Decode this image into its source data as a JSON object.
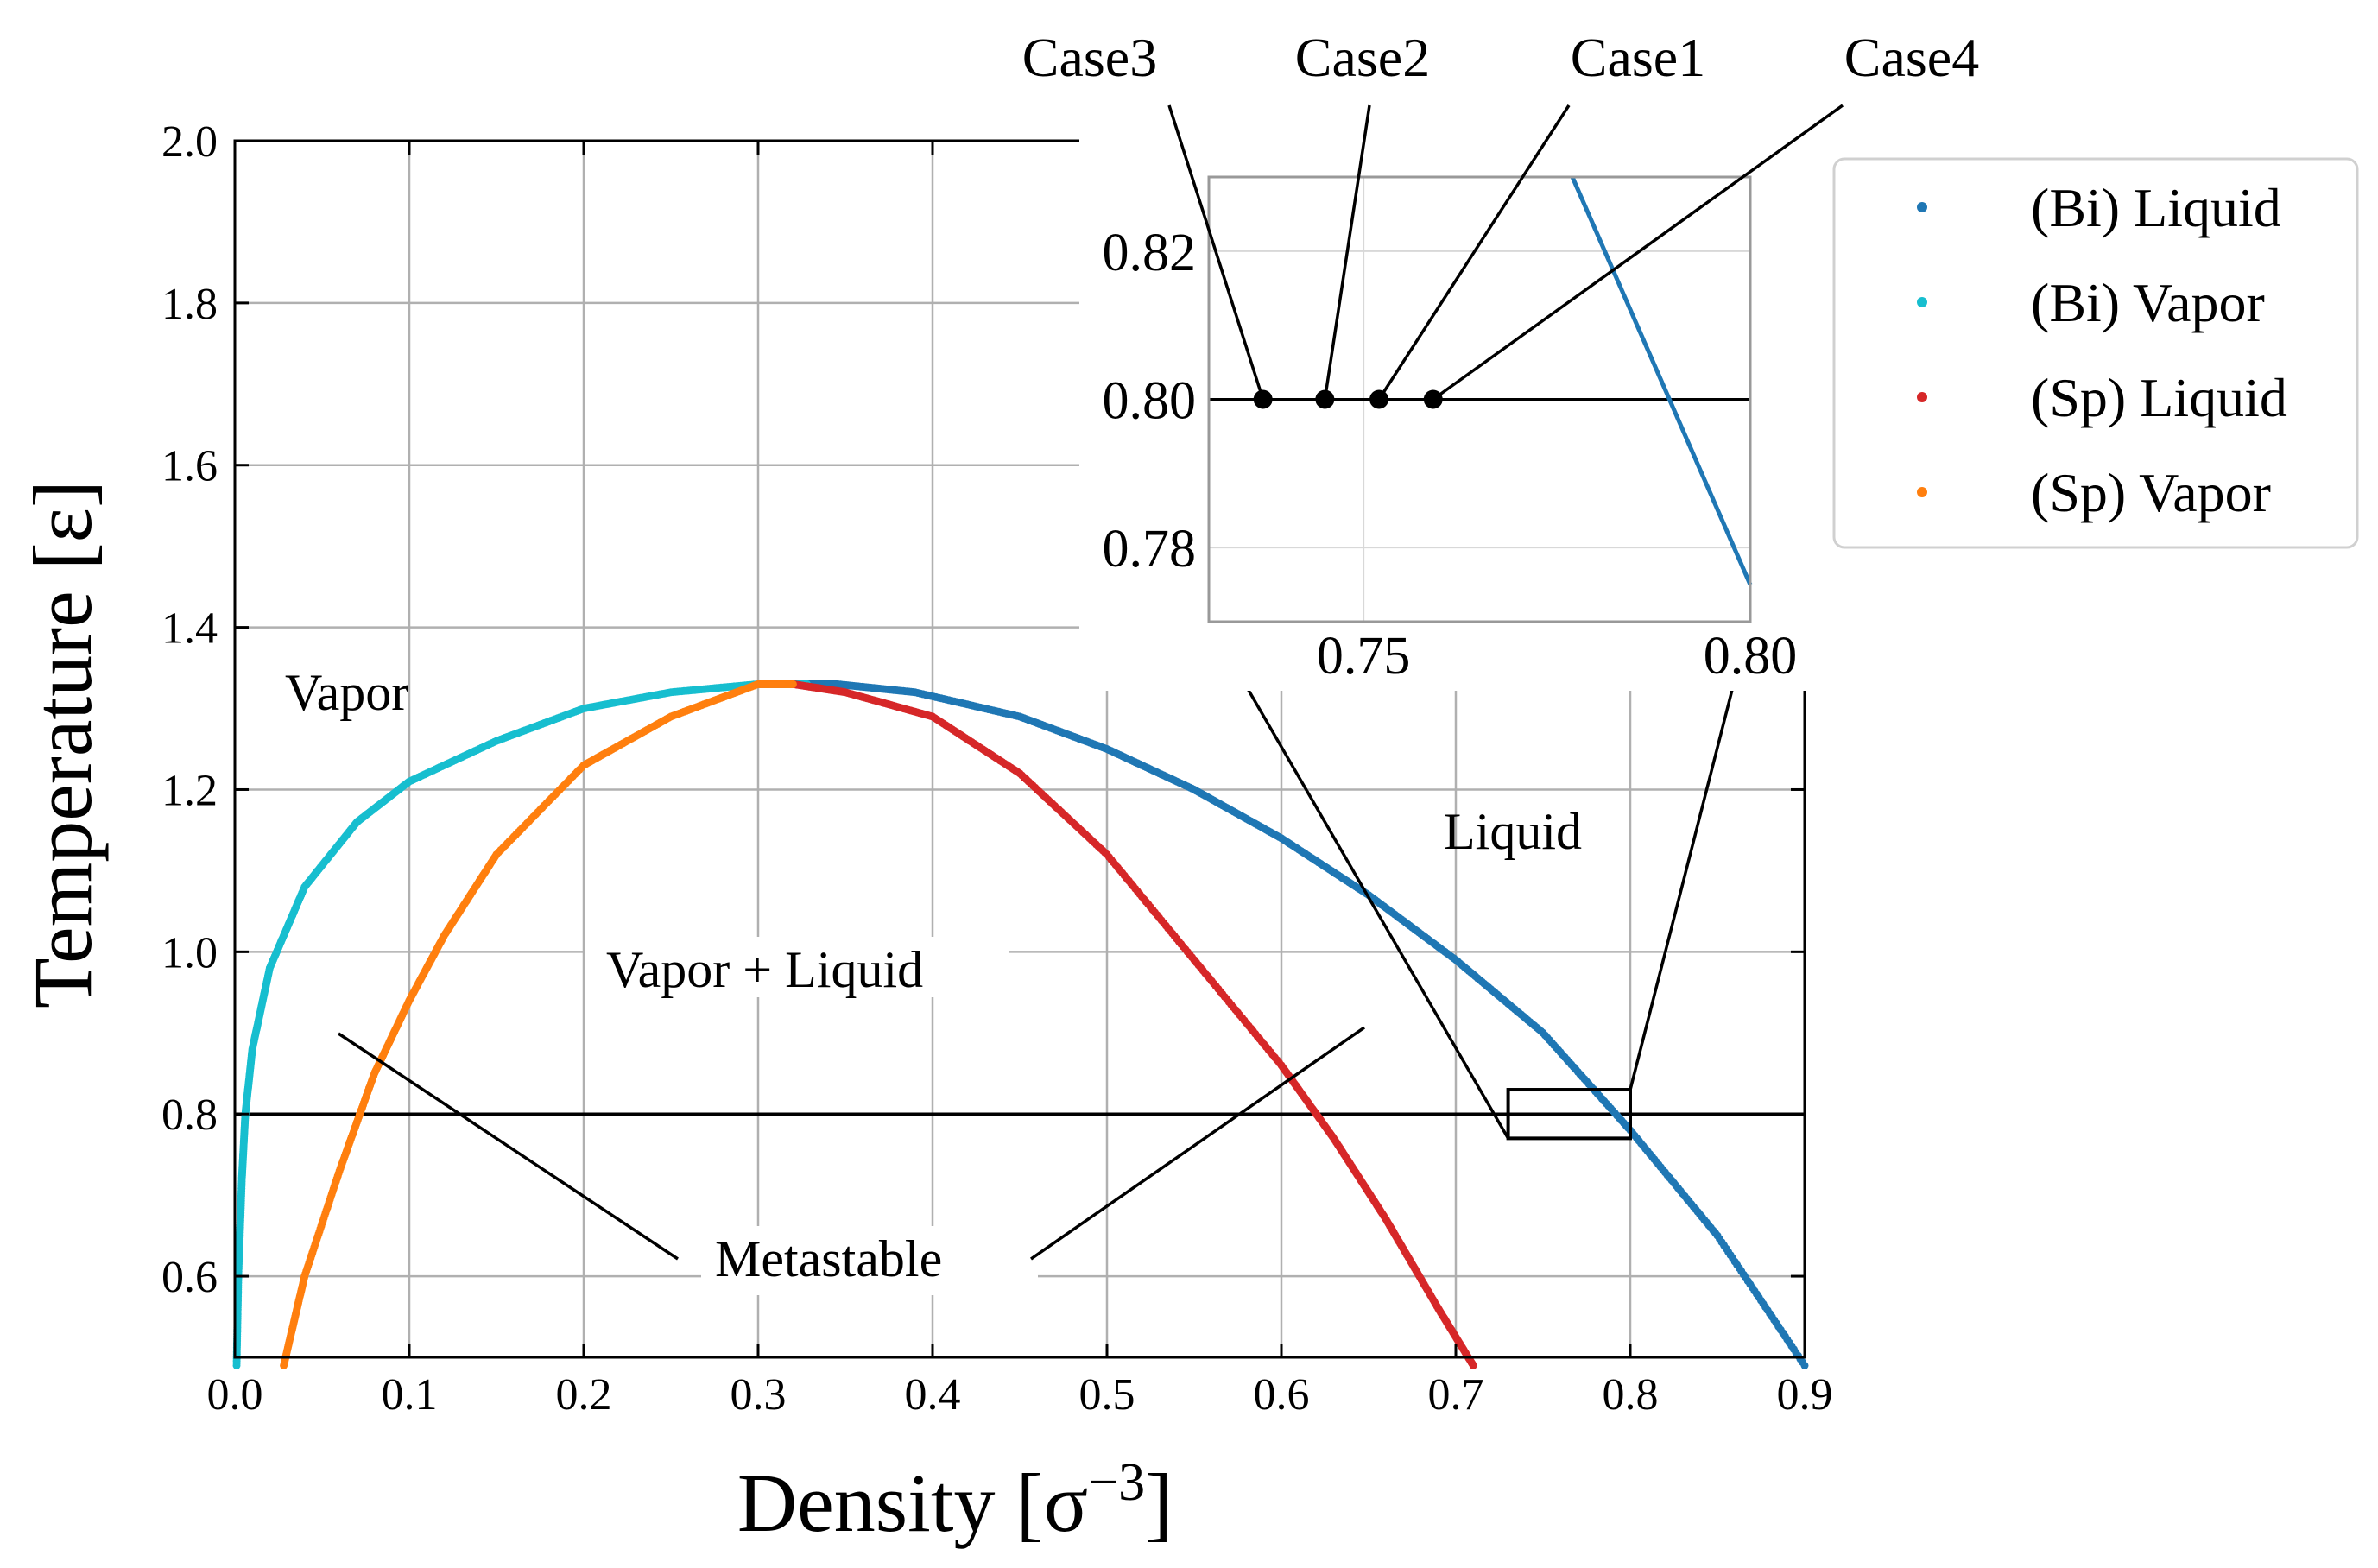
{
  "chart_data": [
    {
      "id": "main",
      "type": "scatter",
      "xlabel": "Density [σ⁻³]",
      "xlabel_parts": {
        "base": "Density [σ",
        "sup": "−3",
        "end": "]"
      },
      "ylabel": "Temperature [ε]",
      "xlim": [
        0.0,
        0.9
      ],
      "ylim": [
        0.5,
        2.0
      ],
      "xticks": [
        0.0,
        0.1,
        0.2,
        0.3,
        0.4,
        0.5,
        0.6,
        0.7,
        0.8,
        0.9
      ],
      "xtick_labels": [
        "0.0",
        "0.1",
        "0.2",
        "0.3",
        "0.4",
        "0.5",
        "0.6",
        "0.7",
        "0.8",
        "0.9"
      ],
      "yticks": [
        0.6,
        0.8,
        1.0,
        1.2,
        1.4,
        1.6,
        1.8,
        2.0
      ],
      "ytick_labels": [
        "0.6",
        "0.8",
        "1.0",
        "1.2",
        "1.4",
        "1.6",
        "1.8",
        "2.0"
      ],
      "grid": true,
      "hline": 0.8,
      "series": [
        {
          "name": "(Bi) Liquid",
          "color": "#1f77b4",
          "x": [
            0.328,
            0.345,
            0.39,
            0.45,
            0.5,
            0.55,
            0.6,
            0.65,
            0.7,
            0.75,
            0.8,
            0.85,
            0.9
          ],
          "y": [
            1.33,
            1.33,
            1.32,
            1.29,
            1.25,
            1.2,
            1.14,
            1.07,
            0.99,
            0.9,
            0.78,
            0.65,
            0.49
          ]
        },
        {
          "name": "(Bi) Vapor",
          "color": "#17becf",
          "x": [
            0.001,
            0.002,
            0.004,
            0.006,
            0.01,
            0.02,
            0.04,
            0.07,
            0.1,
            0.15,
            0.2,
            0.25,
            0.3,
            0.328
          ],
          "y": [
            0.49,
            0.6,
            0.72,
            0.8,
            0.88,
            0.98,
            1.08,
            1.16,
            1.21,
            1.26,
            1.3,
            1.32,
            1.33,
            1.33
          ]
        },
        {
          "name": "(Sp) Liquid",
          "color": "#d62728",
          "x": [
            0.32,
            0.35,
            0.4,
            0.45,
            0.5,
            0.55,
            0.6,
            0.63,
            0.66,
            0.69,
            0.71
          ],
          "y": [
            1.33,
            1.32,
            1.29,
            1.22,
            1.12,
            0.99,
            0.86,
            0.77,
            0.67,
            0.56,
            0.49
          ]
        },
        {
          "name": "(Sp) Vapor",
          "color": "#ff7f0e",
          "x": [
            0.028,
            0.04,
            0.06,
            0.08,
            0.1,
            0.12,
            0.15,
            0.2,
            0.25,
            0.3,
            0.32
          ],
          "y": [
            0.49,
            0.6,
            0.73,
            0.85,
            0.94,
            1.02,
            1.12,
            1.23,
            1.29,
            1.33,
            1.33
          ]
        }
      ],
      "zoom_box": {
        "x": [
          0.73,
          0.8
        ],
        "y": [
          0.77,
          0.83
        ]
      },
      "annotations": [
        "Vapor",
        "Liquid",
        "Vapor + Liquid",
        "Metastable"
      ],
      "metastable_pointer_targets": [
        [
          0.06,
          0.9
        ],
        [
          0.65,
          0.9
        ]
      ]
    },
    {
      "id": "inset",
      "type": "line",
      "xlim": [
        0.73,
        0.8
      ],
      "ylim": [
        0.77,
        0.83
      ],
      "xticks": [
        0.75,
        0.8
      ],
      "xtick_labels": [
        "0.75",
        "0.80"
      ],
      "yticks": [
        0.78,
        0.8,
        0.82
      ],
      "ytick_labels": [
        "0.78",
        "0.80",
        "0.82"
      ],
      "grid": true,
      "hline": 0.8,
      "series": [
        {
          "name": "(Bi) Liquid",
          "color": "#1f77b4",
          "x": [
            0.777,
            0.8
          ],
          "y": [
            0.83,
            0.775
          ]
        }
      ],
      "cases": [
        {
          "label": "Case3",
          "x": 0.737,
          "y": 0.8
        },
        {
          "label": "Case2",
          "x": 0.745,
          "y": 0.8
        },
        {
          "label": "Case1",
          "x": 0.752,
          "y": 0.8
        },
        {
          "label": "Case4",
          "x": 0.759,
          "y": 0.8
        }
      ]
    }
  ],
  "legend": {
    "position": "upper-right-outside",
    "entries": [
      {
        "label": "(Bi) Liquid",
        "color": "#1f77b4"
      },
      {
        "label": "(Bi) Vapor",
        "color": "#17becf"
      },
      {
        "label": "(Sp) Liquid",
        "color": "#d62728"
      },
      {
        "label": "(Sp) Vapor",
        "color": "#ff7f0e"
      }
    ]
  }
}
